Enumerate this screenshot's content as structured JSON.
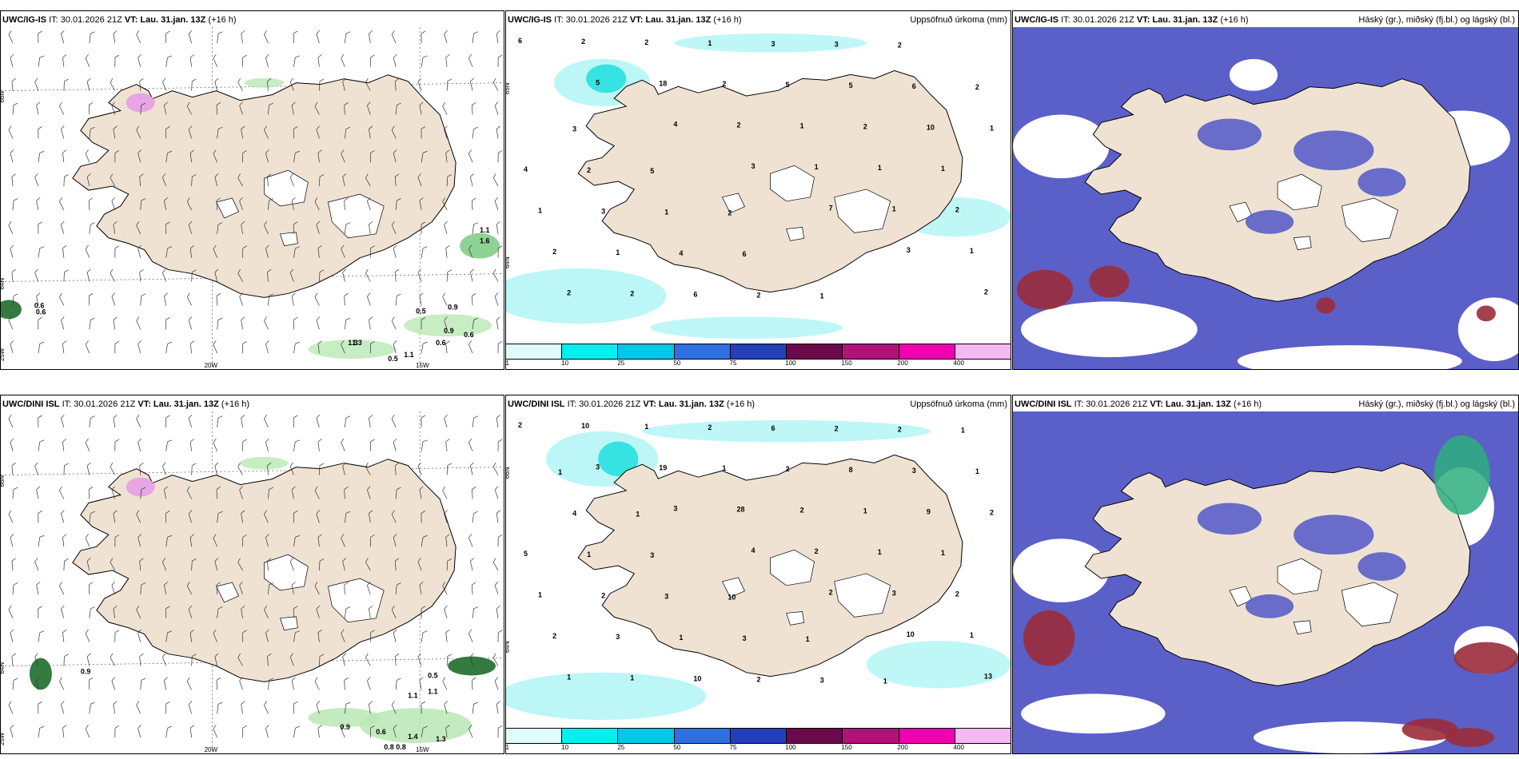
{
  "colors": {
    "land": "#efe2d2",
    "sea": "#ffffff",
    "greenLight": "#b9e8b4",
    "greenMid": "#5fbf6a",
    "greenDark": "#1f6b2c",
    "magenta": "#e59be6",
    "precipLight": "#b8f6f6",
    "precipCyan": "#20dede",
    "cloudBlue": "#5b5fc8",
    "cloudLight": "#9fb3e8",
    "cloudRed": "#9a2c3a"
  },
  "row1": {
    "wind": {
      "model": "UWC/IG-IS",
      "it": "IT: 30.01.2026 21Z",
      "vt": "VT: Lau. 31.jan. 13Z",
      "lead": "(+16 h)",
      "lat_labels": [
        "66N",
        "64N",
        "25W"
      ],
      "lon_labels": [
        "20W",
        "15W"
      ],
      "values": [
        "0.6",
        "0.6",
        "1.1",
        "1.3",
        "1.6",
        "0.5",
        "0.9",
        "0.9",
        "0.6",
        "0.6",
        "0.5",
        "1.1",
        "1.3"
      ]
    },
    "precip": {
      "model": "UWC/IG-IS",
      "it": "IT: 30.01.2026 21Z",
      "vt": "VT: Lau. 31.jan. 13Z",
      "lead": "(+16 h)",
      "right_title": "Uppsöfnuð úrkoma (mm)",
      "lat_labels": [
        "65N",
        "64N"
      ],
      "values": [
        "6",
        "5",
        "4",
        "3",
        "7",
        "3",
        "2",
        "2",
        "18",
        "2",
        "1",
        "1",
        "1",
        "2",
        "2",
        "2",
        "1",
        "1",
        "2",
        "2",
        "2",
        "1",
        "5",
        "2",
        "1",
        "1",
        "1",
        "6",
        "3",
        "5",
        "10",
        "4",
        "3",
        "4",
        "2",
        "3",
        "6",
        "1",
        "2",
        "1",
        "6",
        "1",
        "2",
        "2",
        "3",
        "5",
        "2"
      ],
      "legend_ticks": [
        "1",
        "10",
        "25",
        "50",
        "75",
        "100",
        "150",
        "200",
        "400"
      ]
    },
    "clouds": {
      "model": "UWC/IG-IS",
      "it": "IT: 30.01.2026 21Z",
      "vt": "VT: Lau. 31.jan. 13Z",
      "lead": "(+16 h)",
      "right_title": "Háský (gr.), miðský (fj.bl.) og lágský (bl.)"
    }
  },
  "row2": {
    "wind": {
      "model": "UWC/DINI ISL",
      "it": "IT: 30.01.2026 21Z",
      "vt": "VT: Lau. 31.jan. 13Z",
      "lead": "(+16 h)",
      "lat_labels": [
        "66N",
        "64N",
        "25W"
      ],
      "lon_labels": [
        "20W",
        "15W"
      ],
      "values": [
        "0.9",
        "0.5",
        "1.1",
        "0.9",
        "1.1",
        "0.6",
        "0.8",
        "0.8",
        "1.4",
        "1.3"
      ]
    },
    "precip": {
      "model": "UWC/DINI ISL",
      "it": "IT: 30.01.2026 21Z",
      "vt": "VT: Lau. 31.jan. 13Z",
      "lead": "(+16 h)",
      "right_title": "Uppsöfnuð úrkoma (mm)",
      "lat_labels": [
        "66N",
        "64N"
      ],
      "values": [
        "2",
        "3",
        "3",
        "4",
        "2",
        "10",
        "13",
        "10",
        "19",
        "28",
        "2",
        "3",
        "1",
        "1",
        "1",
        "1",
        "2",
        "1",
        "2",
        "2",
        "1",
        "2",
        "2",
        "1",
        "1",
        "1",
        "3",
        "10",
        "6",
        "8",
        "9",
        "5",
        "2",
        "1",
        "2",
        "2",
        "3",
        "2",
        "1",
        "3",
        "3",
        "3",
        "2",
        "1",
        "4",
        "3",
        "10",
        "1",
        "1",
        "1",
        "1",
        "1"
      ],
      "legend_ticks": [
        "1",
        "10",
        "25",
        "50",
        "75",
        "100",
        "150",
        "200",
        "400"
      ]
    },
    "clouds": {
      "model": "UWC/DINI ISL",
      "it": "IT: 30.01.2026 21Z",
      "vt": "VT: Lau. 31.jan. 13Z",
      "lead": "(+16 h)",
      "right_title": "Háský (gr.), miðský (fj.bl.) og lágský (bl.)"
    }
  },
  "legend": {
    "colors": [
      "#dffcfc",
      "#00f0f0",
      "#00c8e8",
      "#2f6fe0",
      "#2440b8",
      "#6b0a4a",
      "#b0127a",
      "#f000b0",
      "#f4b8f2"
    ]
  }
}
